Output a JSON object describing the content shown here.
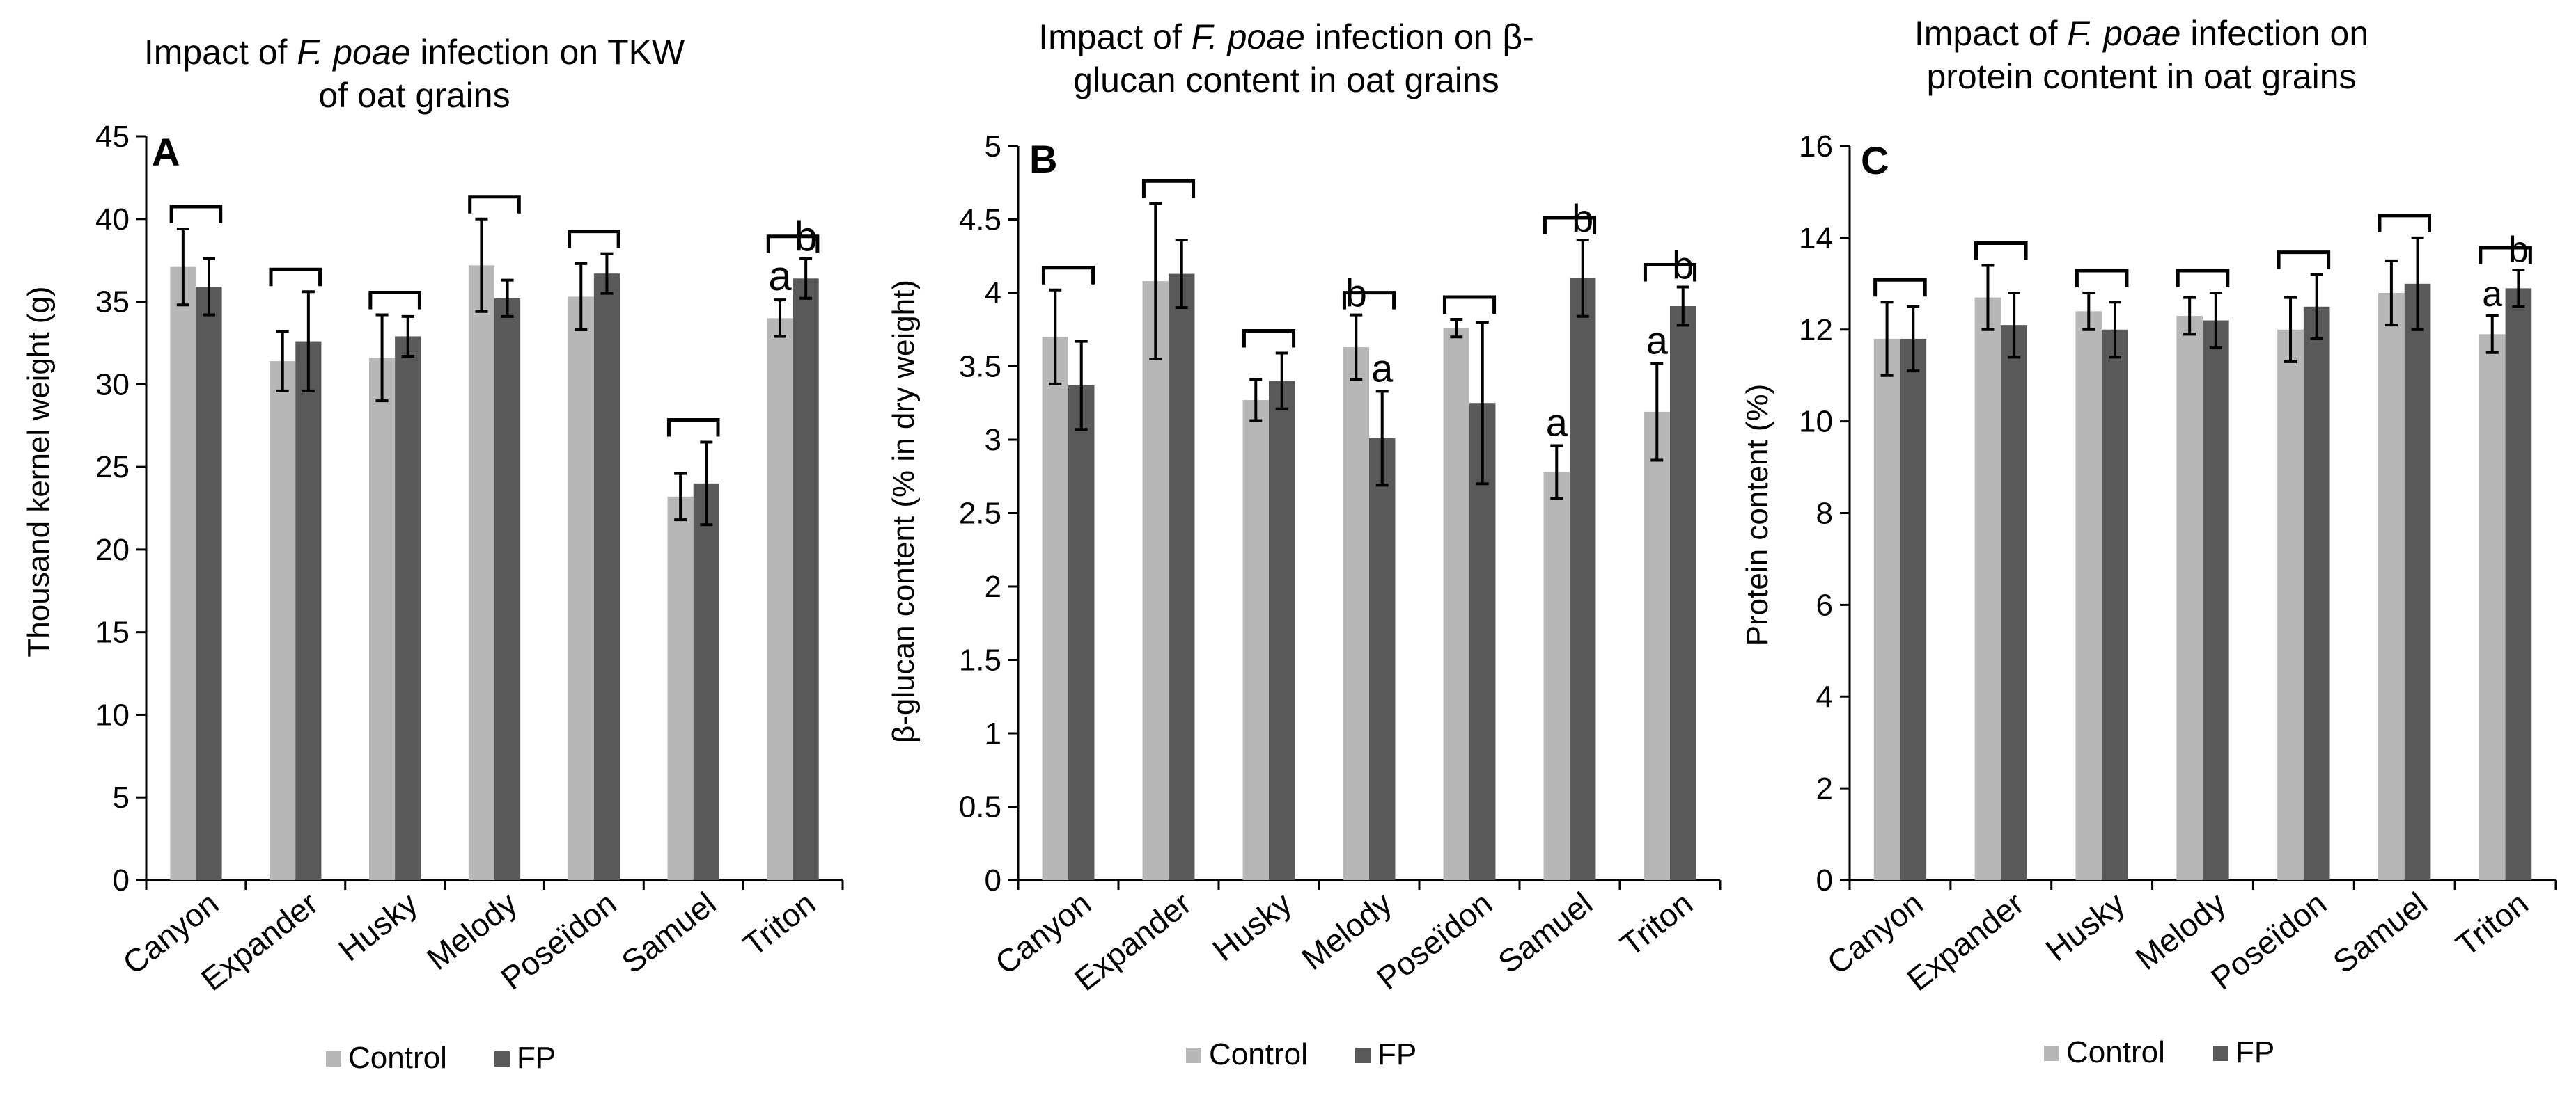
{
  "colors": {
    "control": "#b7b7b7",
    "fp": "#595959",
    "axis": "#000000",
    "errorbar": "#000000"
  },
  "legend": {
    "control": "Control",
    "fp": "FP"
  },
  "chart_data": [
    {
      "type": "bar",
      "panel": "A",
      "title_parts": [
        "Impact of ",
        "F. poae",
        " infection on TKW",
        "of oat grains"
      ],
      "ylabel": "Thousand kernel weight (g)",
      "categories": [
        "Canyon",
        "Expander",
        "Husky",
        "Melody",
        "Poseïdon",
        "Samuel",
        "Triton"
      ],
      "ylim": [
        0,
        45
      ],
      "yticks": [
        "0",
        "5",
        "10",
        "15",
        "20",
        "25",
        "30",
        "35",
        "40",
        "45"
      ],
      "series": [
        {
          "name": "Control",
          "values": [
            37.1,
            31.4,
            31.6,
            37.2,
            35.3,
            23.2,
            34.0
          ],
          "errors": [
            2.3,
            1.8,
            2.6,
            2.8,
            2.0,
            1.4,
            1.1
          ]
        },
        {
          "name": "FP",
          "values": [
            35.9,
            32.6,
            32.9,
            35.2,
            36.7,
            24.0,
            36.4
          ],
          "errors": [
            1.7,
            3.0,
            1.2,
            1.1,
            1.2,
            2.5,
            1.2
          ]
        }
      ],
      "letters": [
        null,
        null,
        null,
        null,
        null,
        null,
        [
          "a",
          "b"
        ]
      ]
    },
    {
      "type": "bar",
      "panel": "B",
      "title_parts": [
        "Impact of ",
        "F. poae",
        " infection on β-",
        "glucan content in oat grains"
      ],
      "ylabel": "β-glucan content (% in dry weight)",
      "categories": [
        "Canyon",
        "Expander",
        "Husky",
        "Melody",
        "Poseïdon",
        "Samuel",
        "Triton"
      ],
      "ylim": [
        0,
        5
      ],
      "yticks": [
        "0",
        "0.5",
        "1",
        "1.5",
        "2",
        "2.5",
        "3",
        "3.5",
        "4",
        "4.5",
        "5"
      ],
      "series": [
        {
          "name": "Control",
          "values": [
            3.7,
            4.08,
            3.27,
            3.63,
            3.76,
            2.78,
            3.19
          ],
          "errors": [
            0.32,
            0.53,
            0.14,
            0.22,
            0.06,
            0.18,
            0.33
          ]
        },
        {
          "name": "FP",
          "values": [
            3.37,
            4.13,
            3.4,
            3.01,
            3.25,
            4.1,
            3.91
          ],
          "errors": [
            0.3,
            0.23,
            0.19,
            0.32,
            0.55,
            0.26,
            0.13
          ]
        }
      ],
      "letters": [
        null,
        null,
        null,
        [
          "b",
          "a"
        ],
        null,
        [
          "a",
          "b"
        ],
        [
          "a",
          "b"
        ]
      ]
    },
    {
      "type": "bar",
      "panel": "C",
      "title_parts": [
        "Impact of ",
        "F. poae",
        " infection on",
        "protein content in oat grains"
      ],
      "ylabel": "Protein content (%)",
      "categories": [
        "Canyon",
        "Expander",
        "Husky",
        "Melody",
        "Poseïdon",
        "Samuel",
        "Triton"
      ],
      "ylim": [
        0,
        16
      ],
      "yticks": [
        "0",
        "2",
        "4",
        "6",
        "8",
        "10",
        "12",
        "14",
        "16"
      ],
      "series": [
        {
          "name": "Control",
          "values": [
            11.8,
            12.7,
            12.4,
            12.3,
            12.0,
            12.8,
            11.9
          ],
          "errors": [
            0.8,
            0.7,
            0.4,
            0.4,
            0.7,
            0.7,
            0.4
          ]
        },
        {
          "name": "FP",
          "values": [
            11.8,
            12.1,
            12.0,
            12.2,
            12.5,
            13.0,
            12.9
          ],
          "errors": [
            0.7,
            0.7,
            0.6,
            0.6,
            0.7,
            1.0,
            0.4
          ]
        }
      ],
      "letters": [
        null,
        null,
        null,
        null,
        null,
        null,
        [
          "a",
          "b"
        ]
      ]
    }
  ]
}
